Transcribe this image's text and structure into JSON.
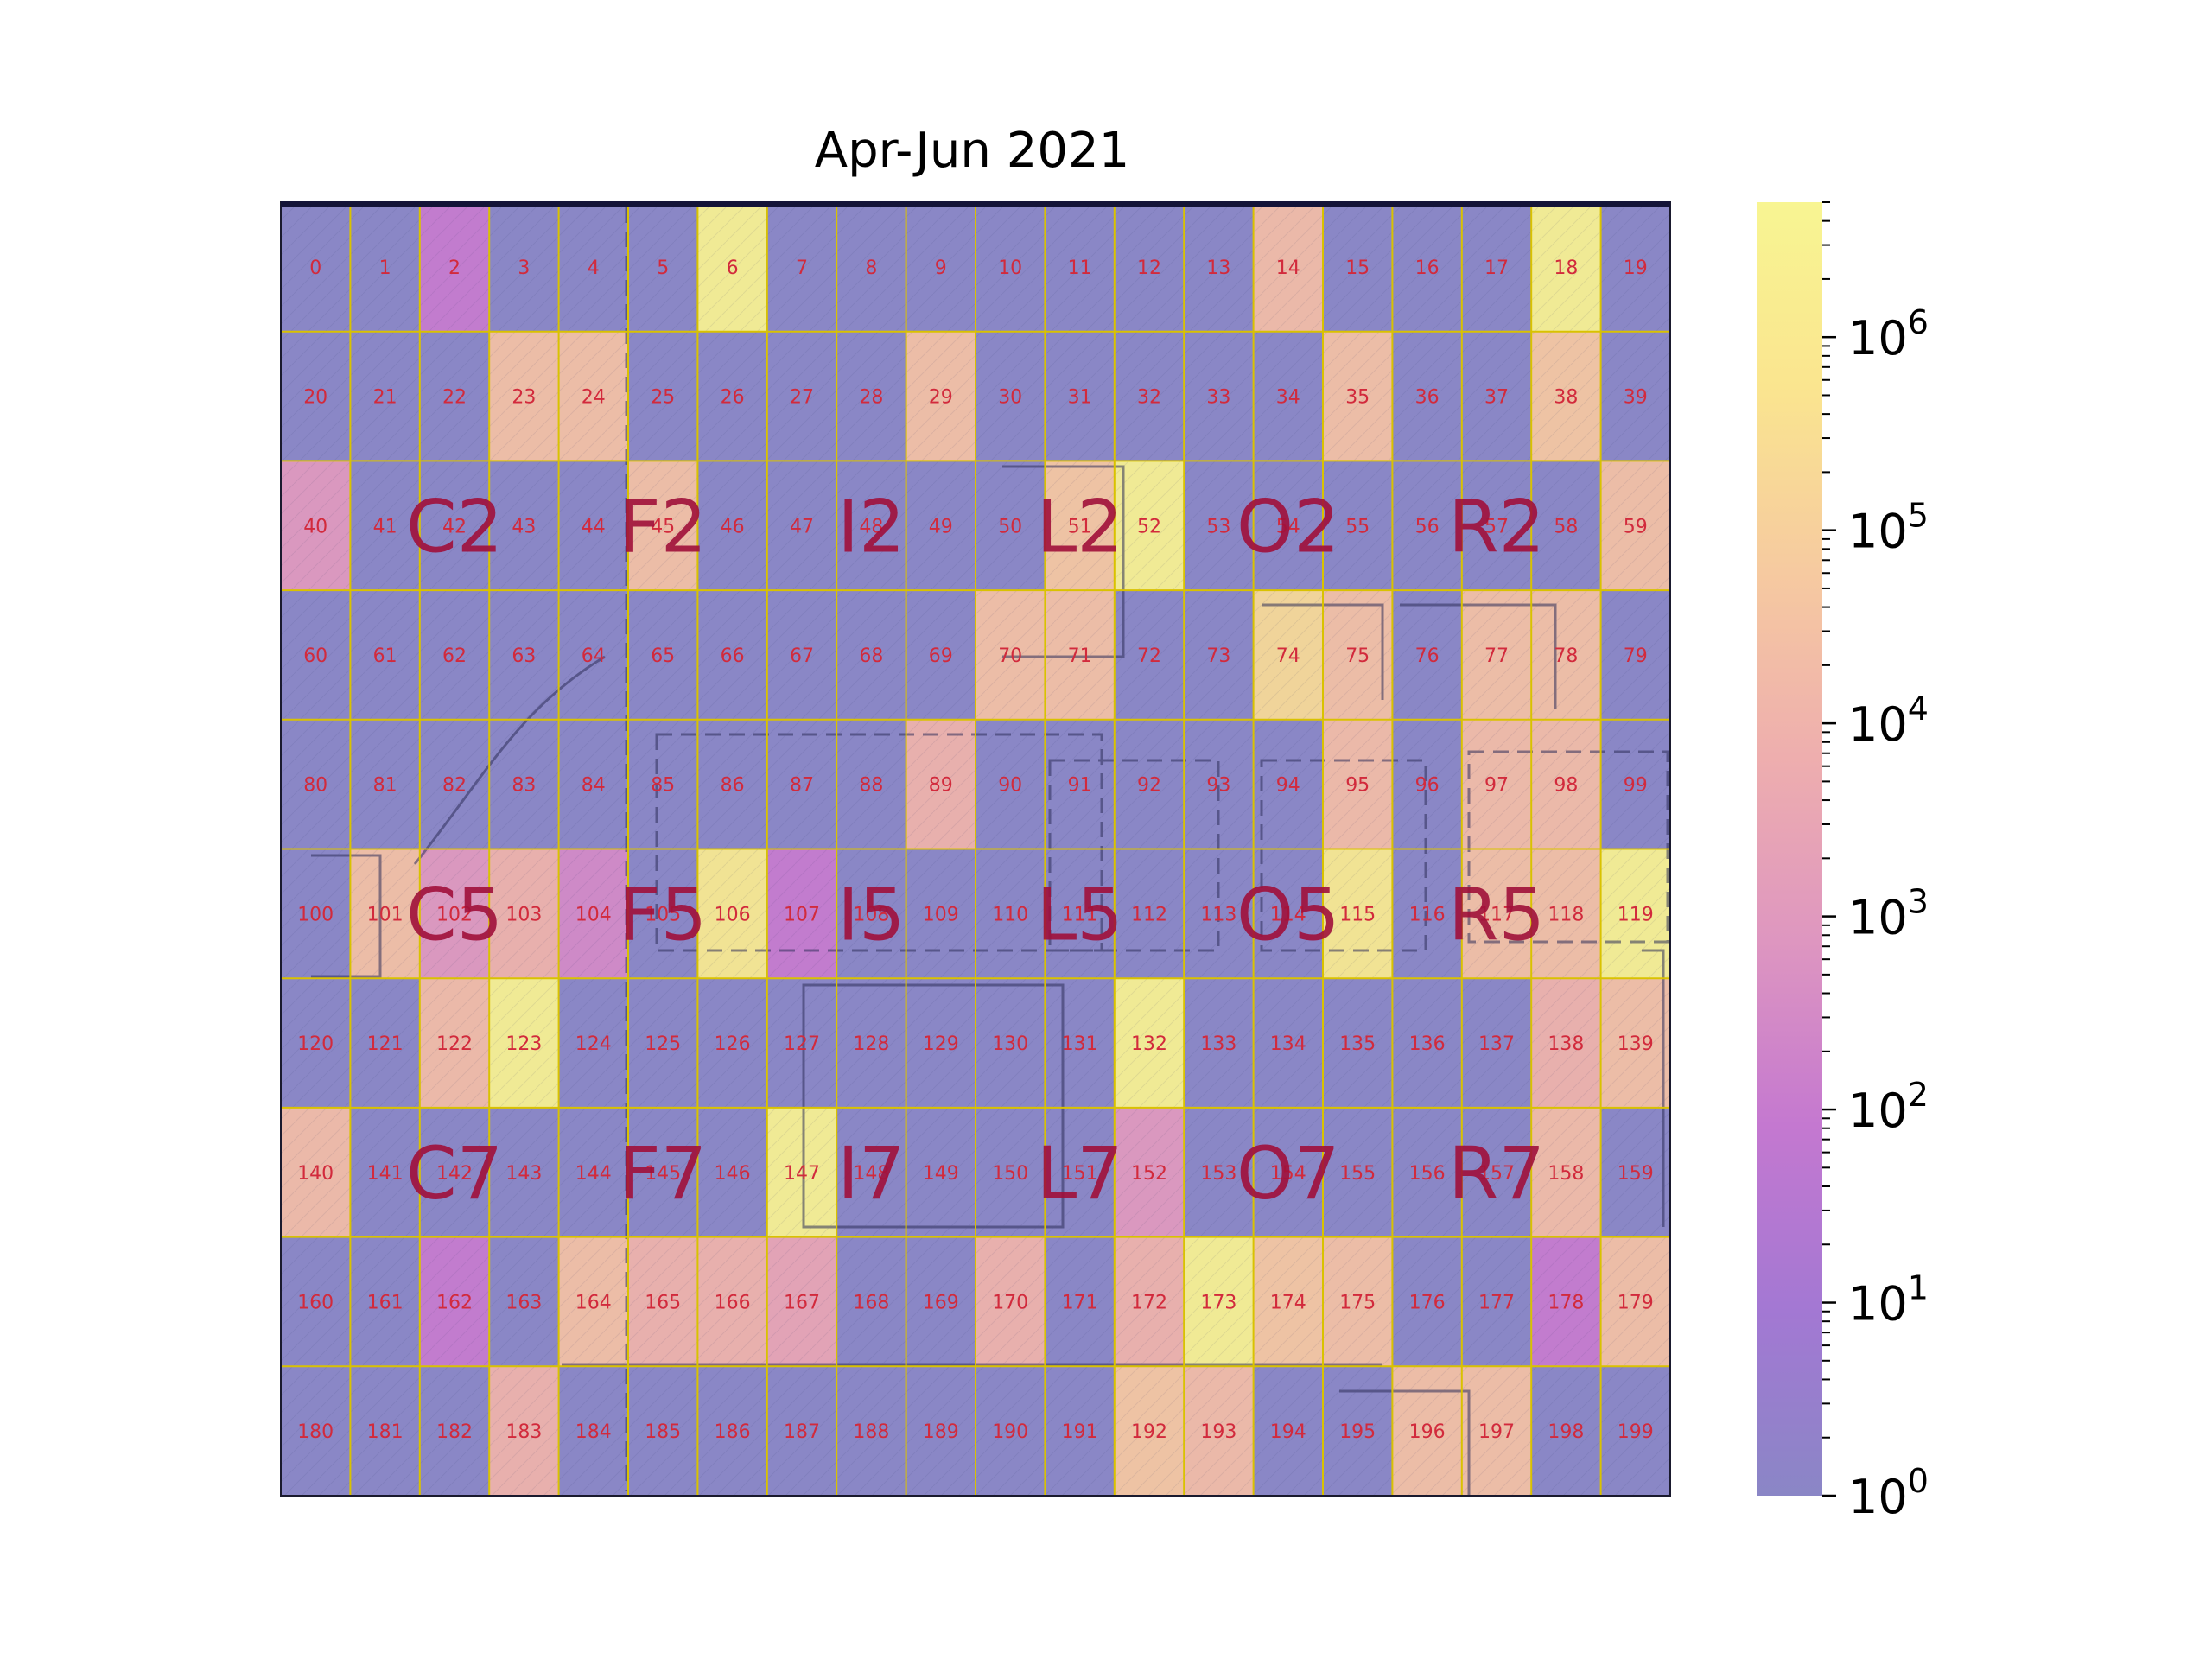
{
  "chart_data": {
    "type": "heatmap",
    "title": "Apr-Jun 2021",
    "xlabel": "",
    "ylabel": "",
    "grid": true,
    "rows": 10,
    "cols": 20,
    "cell_labels": [
      "0",
      "1",
      "2",
      "3",
      "4",
      "5",
      "6",
      "7",
      "8",
      "9",
      "10",
      "11",
      "12",
      "13",
      "14",
      "15",
      "16",
      "17",
      "18",
      "19",
      "20",
      "21",
      "22",
      "23",
      "24",
      "25",
      "26",
      "27",
      "28",
      "29",
      "30",
      "31",
      "32",
      "33",
      "34",
      "35",
      "36",
      "37",
      "38",
      "39",
      "40",
      "41",
      "42",
      "43",
      "44",
      "45",
      "46",
      "47",
      "48",
      "49",
      "50",
      "51",
      "52",
      "53",
      "54",
      "55",
      "56",
      "57",
      "58",
      "59",
      "60",
      "61",
      "62",
      "63",
      "64",
      "65",
      "66",
      "67",
      "68",
      "69",
      "70",
      "71",
      "72",
      "73",
      "74",
      "75",
      "76",
      "77",
      "78",
      "79",
      "80",
      "81",
      "82",
      "83",
      "84",
      "85",
      "86",
      "87",
      "88",
      "89",
      "90",
      "91",
      "92",
      "93",
      "94",
      "95",
      "96",
      "97",
      "98",
      "99",
      "100",
      "101",
      "102",
      "103",
      "104",
      "105",
      "106",
      "107",
      "108",
      "109",
      "110",
      "111",
      "112",
      "113",
      "114",
      "115",
      "116",
      "117",
      "118",
      "119",
      "120",
      "121",
      "122",
      "123",
      "124",
      "125",
      "126",
      "127",
      "128",
      "129",
      "130",
      "131",
      "132",
      "133",
      "134",
      "135",
      "136",
      "137",
      "138",
      "139",
      "140",
      "141",
      "142",
      "143",
      "144",
      "145",
      "146",
      "147",
      "148",
      "149",
      "150",
      "151",
      "152",
      "153",
      "154",
      "155",
      "156",
      "157",
      "158",
      "159",
      "160",
      "161",
      "162",
      "163",
      "164",
      "165",
      "166",
      "167",
      "168",
      "169",
      "170",
      "171",
      "172",
      "173",
      "174",
      "175",
      "176",
      "177",
      "178",
      "179",
      "180",
      "181",
      "182",
      "183",
      "184",
      "185",
      "186",
      "187",
      "188",
      "189",
      "190",
      "191",
      "192",
      "193",
      "194",
      "195",
      "196",
      "197",
      "198",
      "199"
    ],
    "zone_labels": [
      {
        "text": "C2",
        "cell": 42
      },
      {
        "text": "F2",
        "cell": 45
      },
      {
        "text": "I2",
        "cell": 48
      },
      {
        "text": "L2",
        "cell": 51
      },
      {
        "text": "O2",
        "cell": 54
      },
      {
        "text": "R2",
        "cell": 57
      },
      {
        "text": "C5",
        "cell": 102
      },
      {
        "text": "F5",
        "cell": 105
      },
      {
        "text": "I5",
        "cell": 108
      },
      {
        "text": "L5",
        "cell": 111
      },
      {
        "text": "O5",
        "cell": 114
      },
      {
        "text": "R5",
        "cell": 117
      },
      {
        "text": "C7",
        "cell": 142
      },
      {
        "text": "F7",
        "cell": 145
      },
      {
        "text": "I7",
        "cell": 148
      },
      {
        "text": "L7",
        "cell": 151
      },
      {
        "text": "O7",
        "cell": 154
      },
      {
        "text": "R7",
        "cell": 157
      }
    ],
    "values": [
      [
        1,
        1,
        100,
        1,
        1,
        1,
        3000000,
        1,
        1,
        1,
        1,
        1,
        1,
        1,
        20000,
        1,
        1,
        1,
        3000000,
        1
      ],
      [
        1,
        1,
        1,
        30000,
        30000,
        1,
        1,
        1,
        1,
        30000,
        1,
        1,
        1,
        1,
        1,
        30000,
        1,
        1,
        50000,
        1
      ],
      [
        1000,
        1,
        1,
        1,
        1,
        30000,
        1,
        1,
        1,
        1,
        1,
        50000,
        3000000,
        1,
        1,
        1,
        1,
        1,
        1,
        30000
      ],
      [
        1,
        1,
        1,
        1,
        1,
        1,
        1,
        1,
        1,
        1,
        30000,
        30000,
        1,
        1,
        200000,
        30000,
        1,
        30000,
        30000,
        1
      ],
      [
        1,
        1,
        1,
        1,
        1,
        1,
        1,
        1,
        1,
        10000,
        1,
        1,
        1,
        1,
        1,
        20000,
        1,
        20000,
        20000,
        1
      ],
      [
        1,
        30000,
        1000,
        10000,
        300,
        1,
        1000000,
        100,
        1,
        1,
        1,
        1,
        1,
        1,
        1,
        1000000,
        1,
        30000,
        30000,
        3000000
      ],
      [
        1,
        1,
        20000,
        3000000,
        1,
        1,
        1,
        1,
        1,
        1,
        1,
        1,
        3000000,
        1,
        1,
        1,
        1,
        1,
        10000,
        30000
      ],
      [
        20000,
        1,
        1,
        1,
        1,
        1,
        1,
        3000000,
        1,
        1,
        1,
        1,
        1000,
        1,
        1,
        1,
        1,
        1,
        20000,
        1
      ],
      [
        1,
        1,
        100,
        1,
        30000,
        10000,
        10000,
        3000,
        1,
        1,
        10000,
        1,
        10000,
        3000000,
        50000,
        30000,
        1,
        1,
        100,
        30000
      ],
      [
        1,
        1,
        1,
        10000,
        1,
        1,
        1,
        1,
        1,
        1,
        1,
        1,
        50000,
        20000,
        1,
        1,
        30000,
        30000,
        1,
        1
      ]
    ],
    "colorbar": {
      "scale": "log",
      "min": 1,
      "max": 5000000,
      "major_ticks": [
        {
          "value": 1,
          "base": "10",
          "exp": "0"
        },
        {
          "value": 10,
          "base": "10",
          "exp": "1"
        },
        {
          "value": 100,
          "base": "10",
          "exp": "2"
        },
        {
          "value": 1000,
          "base": "10",
          "exp": "3"
        },
        {
          "value": 10000,
          "base": "10",
          "exp": "4"
        },
        {
          "value": 100000,
          "base": "10",
          "exp": "5"
        },
        {
          "value": 1000000,
          "base": "10",
          "exp": "6"
        }
      ],
      "colors": [
        "#8a86c6",
        "#a378d3",
        "#c478d0",
        "#de96c0",
        "#eeaeae",
        "#f6caa0",
        "#fae58f",
        "#f8f592"
      ]
    }
  }
}
